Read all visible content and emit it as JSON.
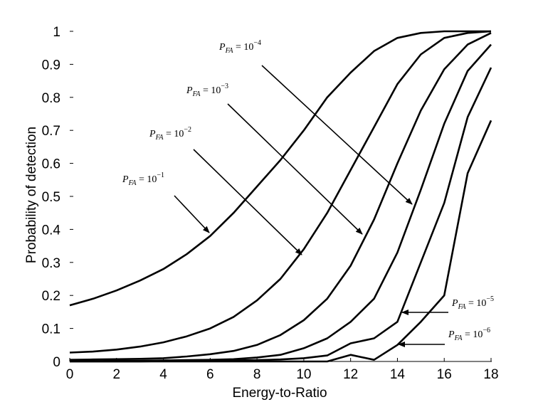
{
  "chart_data": {
    "type": "line",
    "title": "",
    "xlabel": "Energy-to-Ratio",
    "ylabel": "Probability of detection",
    "xlim": [
      0,
      18
    ],
    "ylim": [
      0,
      1
    ],
    "grid": false,
    "legend": "none",
    "x_ticks": [
      "0",
      "2",
      "4",
      "6",
      "8",
      "10",
      "12",
      "14",
      "16",
      "18"
    ],
    "y_ticks": [
      "0",
      "0.1",
      "0.2",
      "0.3",
      "0.4",
      "0.5",
      "0.6",
      "0.7",
      "0.8",
      "0.9",
      "1"
    ],
    "x": [
      0,
      1,
      2,
      3,
      4,
      5,
      6,
      7,
      8,
      9,
      10,
      11,
      12,
      13,
      14,
      15,
      16,
      17,
      18
    ],
    "series": [
      {
        "values": [
          0.17,
          0.19,
          0.215,
          0.245,
          0.28,
          0.325,
          0.38,
          0.45,
          0.53,
          0.61,
          0.7,
          0.8,
          0.875,
          0.94,
          0.98,
          0.995,
          1.0,
          1.0,
          1.0
        ]
      },
      {
        "values": [
          0.027,
          0.03,
          0.036,
          0.045,
          0.058,
          0.076,
          0.1,
          0.135,
          0.185,
          0.25,
          0.34,
          0.45,
          0.58,
          0.71,
          0.84,
          0.93,
          0.98,
          0.995,
          1.0
        ]
      },
      {
        "values": [
          0.005,
          0.006,
          0.007,
          0.008,
          0.01,
          0.015,
          0.022,
          0.032,
          0.05,
          0.08,
          0.125,
          0.19,
          0.29,
          0.43,
          0.6,
          0.76,
          0.885,
          0.96,
          0.995
        ]
      },
      {
        "values": [
          0.001,
          0.001,
          0.002,
          0.002,
          0.003,
          0.004,
          0.005,
          0.007,
          0.012,
          0.02,
          0.04,
          0.07,
          0.12,
          0.19,
          0.33,
          0.52,
          0.72,
          0.88,
          0.96
        ]
      },
      {
        "values": [
          0.0,
          0.0,
          0.0,
          0.0,
          0.001,
          0.001,
          0.002,
          0.003,
          0.004,
          0.006,
          0.01,
          0.018,
          0.055,
          0.07,
          0.12,
          0.3,
          0.48,
          0.74,
          0.89
        ]
      },
      {
        "values": [
          0.0,
          0.0,
          0.0,
          0.0,
          0.0,
          0.0,
          0.0,
          0.0,
          0.0,
          0.0,
          0.0,
          0.0,
          0.02,
          0.005,
          0.05,
          0.12,
          0.2,
          0.57,
          0.73
        ]
      }
    ],
    "annotations": [
      {
        "base": "P",
        "sub": "FA",
        "eq": " = 10",
        "exp": "−1"
      },
      {
        "base": "P",
        "sub": "FA",
        "eq": " = 10",
        "exp": "−2"
      },
      {
        "base": "P",
        "sub": "FA",
        "eq": " = 10",
        "exp": "−3"
      },
      {
        "base": "P",
        "sub": "FA",
        "eq": " = 10",
        "exp": "−4"
      },
      {
        "base": "P",
        "sub": "FA",
        "eq": " = 10",
        "exp": "−5"
      },
      {
        "base": "P",
        "sub": "FA",
        "eq": " = 10",
        "exp": "−6"
      }
    ]
  }
}
